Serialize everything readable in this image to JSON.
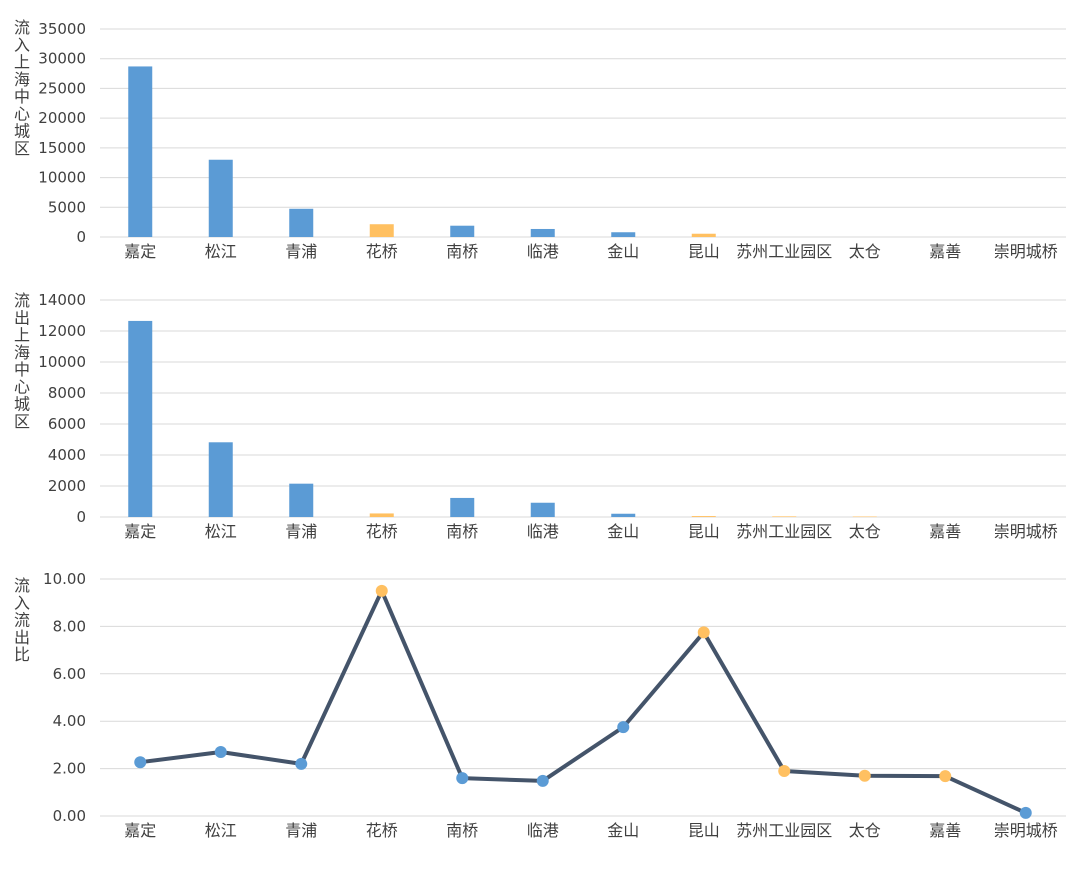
{
  "chart_data": [
    {
      "type": "bar",
      "ylabel": "流入上海中心城区",
      "categories": [
        "嘉定",
        "松江",
        "青浦",
        "花桥",
        "南桥",
        "临港",
        "金山",
        "昆山",
        "苏州工业园区",
        "太仓",
        "嘉善",
        "崇明城桥"
      ],
      "yticks": [
        "0",
        "5000",
        "10000",
        "15000",
        "20000",
        "25000",
        "30000",
        "35000"
      ],
      "ylim": [
        0,
        35000
      ],
      "values": [
        28700,
        13000,
        4750,
        2150,
        1900,
        1350,
        800,
        550,
        0,
        0,
        0,
        0
      ],
      "point_groups": [
        "blue",
        "blue",
        "blue",
        "orange",
        "blue",
        "blue",
        "blue",
        "orange",
        "orange",
        "orange",
        "orange",
        "blue"
      ],
      "grid": true
    },
    {
      "type": "bar",
      "ylabel": "流出上海中心城区",
      "categories": [
        "嘉定",
        "松江",
        "青浦",
        "花桥",
        "南桥",
        "临港",
        "金山",
        "昆山",
        "苏州工业园区",
        "太仓",
        "嘉善",
        "崇明城桥"
      ],
      "yticks": [
        "0",
        "2000",
        "4000",
        "6000",
        "8000",
        "10000",
        "12000",
        "14000"
      ],
      "ylim": [
        0,
        14000
      ],
      "values": [
        12650,
        4820,
        2150,
        230,
        1230,
        920,
        210,
        60,
        40,
        30,
        0,
        0
      ],
      "point_groups": [
        "blue",
        "blue",
        "blue",
        "orange",
        "blue",
        "blue",
        "blue",
        "orange",
        "orange",
        "orange",
        "orange",
        "blue"
      ],
      "grid": true
    },
    {
      "type": "line",
      "ylabel": "流入流出比",
      "categories": [
        "嘉定",
        "松江",
        "青浦",
        "花桥",
        "南桥",
        "临港",
        "金山",
        "昆山",
        "苏州工业园区",
        "太仓",
        "嘉善",
        "崇明城桥"
      ],
      "yticks": [
        "0.00",
        "2.00",
        "4.00",
        "6.00",
        "8.00",
        "10.00"
      ],
      "ylim": [
        0,
        10
      ],
      "values": [
        2.27,
        2.7,
        2.2,
        9.5,
        1.6,
        1.48,
        3.75,
        7.75,
        1.9,
        1.7,
        1.68,
        0.13
      ],
      "point_groups": [
        "blue",
        "blue",
        "blue",
        "orange",
        "blue",
        "blue",
        "blue",
        "orange",
        "orange",
        "orange",
        "orange",
        "blue"
      ],
      "grid": true
    }
  ],
  "colors": {
    "blue": "#5b9bd5",
    "orange": "#ffc061",
    "line": "#44546a",
    "grid": "#d9d9d9",
    "text": "#404040"
  }
}
